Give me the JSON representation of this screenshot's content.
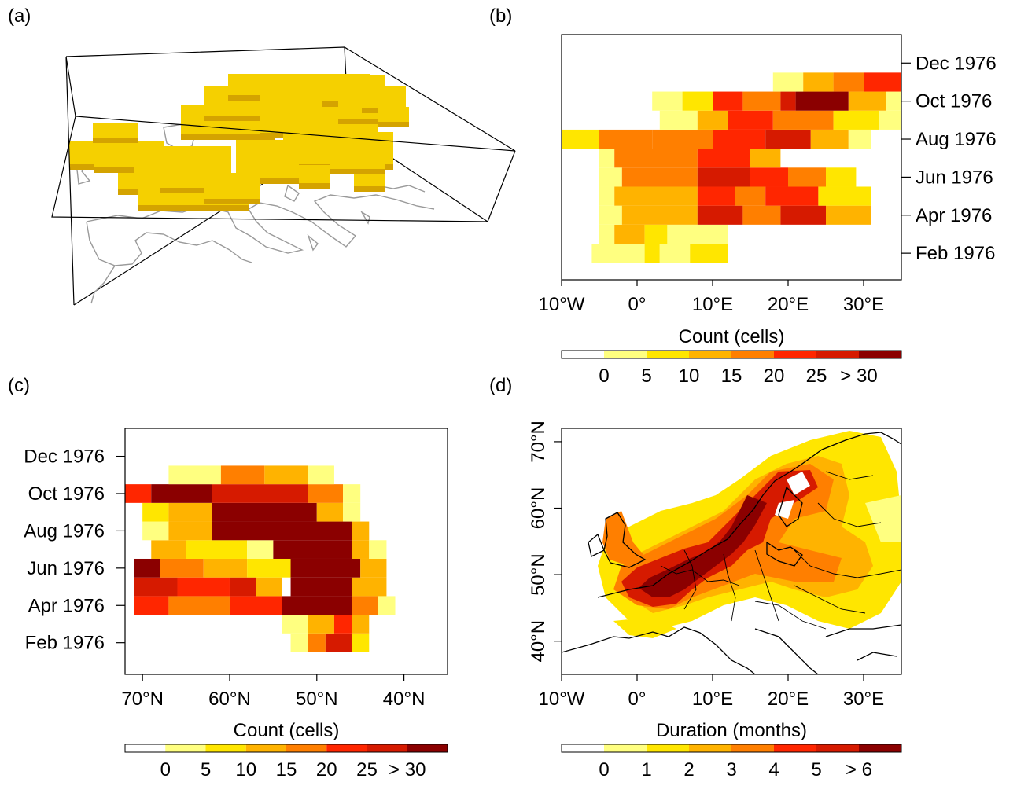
{
  "panel_labels": [
    "(a)",
    "(b)",
    "(c)",
    "(d)"
  ],
  "colors": {
    "scale": [
      "#ffffff",
      "#ffff80",
      "#ffe600",
      "#ffb300",
      "#ff7f00",
      "#ff2600",
      "#d61a00",
      "#8b0000"
    ],
    "voxel": "#f5d000",
    "voxel_shade": "#d4a300",
    "coast": "#9a9a9a",
    "border": "#000000"
  },
  "chart_data": [
    {
      "panel": "(a)",
      "type": "other",
      "description_visible": false
    },
    {
      "panel": "(b)",
      "type": "heatmap",
      "xlabel": "",
      "x_ticks": [
        "10°W",
        "0°",
        "10°E",
        "20°E",
        "30°E"
      ],
      "x_tick_values": [
        -10,
        0,
        10,
        20,
        30
      ],
      "xlim": [
        -10,
        35
      ],
      "y_ticks": [
        "Dec 1976",
        "Oct 1976",
        "Aug 1976",
        "Jun 1976",
        "Apr 1976",
        "Feb 1976"
      ],
      "y_tick_months": [
        12,
        10,
        8,
        6,
        4,
        2
      ],
      "ylim_months": [
        0.6,
        13.5
      ],
      "colorbar": {
        "title": "Count (cells)",
        "ticks": [
          "0",
          "5",
          "10",
          "15",
          "20",
          "25",
          "> 30"
        ]
      },
      "rows": [
        {
          "month": 2,
          "segments": [
            [
              -6,
              1,
              1
            ],
            [
              1,
              3,
              2
            ],
            [
              3,
              7,
              1
            ],
            [
              7,
              12,
              2
            ]
          ]
        },
        {
          "month": 3,
          "segments": [
            [
              -5,
              -3,
              1
            ],
            [
              -3,
              1,
              3
            ],
            [
              1,
              4,
              2
            ],
            [
              4,
              12,
              1
            ]
          ]
        },
        {
          "month": 4,
          "segments": [
            [
              -5,
              -2,
              1
            ],
            [
              -2,
              8,
              3
            ],
            [
              8,
              14,
              6
            ],
            [
              14,
              19,
              4
            ],
            [
              19,
              25,
              6
            ],
            [
              25,
              31,
              3
            ]
          ]
        },
        {
          "month": 5,
          "segments": [
            [
              -5,
              -3,
              1
            ],
            [
              -3,
              8,
              3
            ],
            [
              8,
              13,
              5
            ],
            [
              13,
              17,
              4
            ],
            [
              17,
              24,
              5
            ],
            [
              24,
              31,
              2
            ]
          ]
        },
        {
          "month": 6,
          "segments": [
            [
              -5,
              -2,
              1
            ],
            [
              -2,
              8,
              4
            ],
            [
              8,
              15,
              6
            ],
            [
              15,
              20,
              5
            ],
            [
              20,
              25,
              4
            ],
            [
              25,
              29,
              2
            ]
          ]
        },
        {
          "month": 7,
          "segments": [
            [
              -5,
              -3,
              1
            ],
            [
              -3,
              8,
              4
            ],
            [
              8,
              15,
              5
            ],
            [
              15,
              19,
              3
            ]
          ]
        },
        {
          "month": 8,
          "segments": [
            [
              -10,
              -5,
              2
            ],
            [
              -5,
              2,
              4
            ],
            [
              2,
              10,
              4
            ],
            [
              10,
              17,
              5
            ],
            [
              17,
              23,
              6
            ],
            [
              23,
              28,
              3
            ],
            [
              28,
              31,
              1
            ]
          ]
        },
        {
          "month": 9,
          "segments": [
            [
              3,
              8,
              1
            ],
            [
              8,
              12,
              3
            ],
            [
              12,
              18,
              5
            ],
            [
              18,
              26,
              4
            ],
            [
              26,
              32,
              2
            ],
            [
              32,
              35,
              1
            ]
          ]
        },
        {
          "month": 10,
          "segments": [
            [
              2,
              6,
              1
            ],
            [
              6,
              10,
              2
            ],
            [
              10,
              14,
              5
            ],
            [
              14,
              19,
              4
            ],
            [
              19,
              21,
              6
            ],
            [
              21,
              28,
              7
            ],
            [
              28,
              33,
              3
            ],
            [
              33,
              35,
              1
            ]
          ]
        },
        {
          "month": 11,
          "segments": [
            [
              18,
              22,
              1
            ],
            [
              22,
              26,
              3
            ],
            [
              26,
              30,
              4
            ],
            [
              30,
              35,
              5
            ]
          ]
        }
      ]
    },
    {
      "panel": "(c)",
      "type": "heatmap",
      "xlabel": "",
      "x_ticks": [
        "70°N",
        "60°N",
        "50°N",
        "40°N"
      ],
      "x_tick_values": [
        70,
        60,
        50,
        40
      ],
      "xlim": [
        72,
        35
      ],
      "y_ticks": [
        "Dec 1976",
        "Oct 1976",
        "Aug 1976",
        "Jun 1976",
        "Apr 1976",
        "Feb 1976"
      ],
      "y_tick_months": [
        12,
        10,
        8,
        6,
        4,
        2
      ],
      "ylim_months": [
        0.3,
        13.5
      ],
      "colorbar": {
        "title": "Count (cells)",
        "ticks": [
          "0",
          "5",
          "10",
          "15",
          "20",
          "25",
          "> 30"
        ]
      },
      "rows": [
        {
          "month": 2,
          "segments": [
            [
              53,
              51,
              1
            ],
            [
              51,
              49,
              4
            ],
            [
              49,
              46,
              6
            ],
            [
              46,
              44,
              2
            ]
          ]
        },
        {
          "month": 3,
          "segments": [
            [
              54,
              51,
              1
            ],
            [
              51,
              48,
              3
            ],
            [
              48,
              46,
              5
            ],
            [
              46,
              44,
              3
            ]
          ]
        },
        {
          "month": 4,
          "segments": [
            [
              71,
              67,
              5
            ],
            [
              67,
              60,
              4
            ],
            [
              60,
              54,
              5
            ],
            [
              54,
              46,
              7
            ],
            [
              46,
              43,
              4
            ],
            [
              43,
              41,
              1
            ]
          ]
        },
        {
          "month": 5,
          "segments": [
            [
              71,
              66,
              6
            ],
            [
              66,
              60,
              5
            ],
            [
              60,
              57,
              6
            ],
            [
              57,
              54,
              3
            ],
            [
              54,
              53,
              0
            ],
            [
              53,
              46,
              7
            ],
            [
              46,
              42,
              3
            ]
          ]
        },
        {
          "month": 6,
          "segments": [
            [
              71,
              68,
              7
            ],
            [
              68,
              63,
              4
            ],
            [
              63,
              58,
              3
            ],
            [
              58,
              53,
              2
            ],
            [
              53,
              45,
              7
            ],
            [
              45,
              42,
              3
            ]
          ]
        },
        {
          "month": 7,
          "segments": [
            [
              71,
              69,
              0
            ],
            [
              69,
              65,
              3
            ],
            [
              65,
              58,
              2
            ],
            [
              58,
              55,
              1
            ],
            [
              55,
              46,
              7
            ],
            [
              46,
              44,
              3
            ],
            [
              44,
              42,
              1
            ]
          ]
        },
        {
          "month": 8,
          "segments": [
            [
              70,
              67,
              1
            ],
            [
              67,
              62,
              3
            ],
            [
              62,
              46,
              7
            ],
            [
              46,
              44,
              3
            ]
          ]
        },
        {
          "month": 9,
          "segments": [
            [
              70,
              67,
              2
            ],
            [
              67,
              62,
              3
            ],
            [
              62,
              50,
              7
            ],
            [
              50,
              47,
              3
            ],
            [
              47,
              45,
              1
            ]
          ]
        },
        {
          "month": 10,
          "segments": [
            [
              72,
              69,
              5
            ],
            [
              69,
              62,
              7
            ],
            [
              62,
              51,
              6
            ],
            [
              51,
              47,
              4
            ],
            [
              47,
              45,
              1
            ]
          ]
        },
        {
          "month": 11,
          "segments": [
            [
              67,
              61,
              1
            ],
            [
              61,
              56,
              4
            ],
            [
              56,
              51,
              3
            ],
            [
              51,
              48,
              1
            ]
          ]
        }
      ]
    },
    {
      "panel": "(d)",
      "type": "heatmap",
      "xlabel": "",
      "x_ticks": [
        "10°W",
        "0°",
        "10°E",
        "20°E",
        "30°E"
      ],
      "x_tick_values": [
        -10,
        0,
        10,
        20,
        30
      ],
      "xlim": [
        -10,
        35
      ],
      "y_ticks": [
        "40°N",
        "50°N",
        "60°N",
        "70°N"
      ],
      "y_tick_values": [
        40,
        50,
        60,
        70
      ],
      "ylim": [
        35,
        72
      ],
      "colorbar": {
        "title": "Duration (months)",
        "ticks": [
          "0",
          "1",
          "2",
          "3",
          "4",
          "5",
          "> 6"
        ]
      }
    }
  ]
}
